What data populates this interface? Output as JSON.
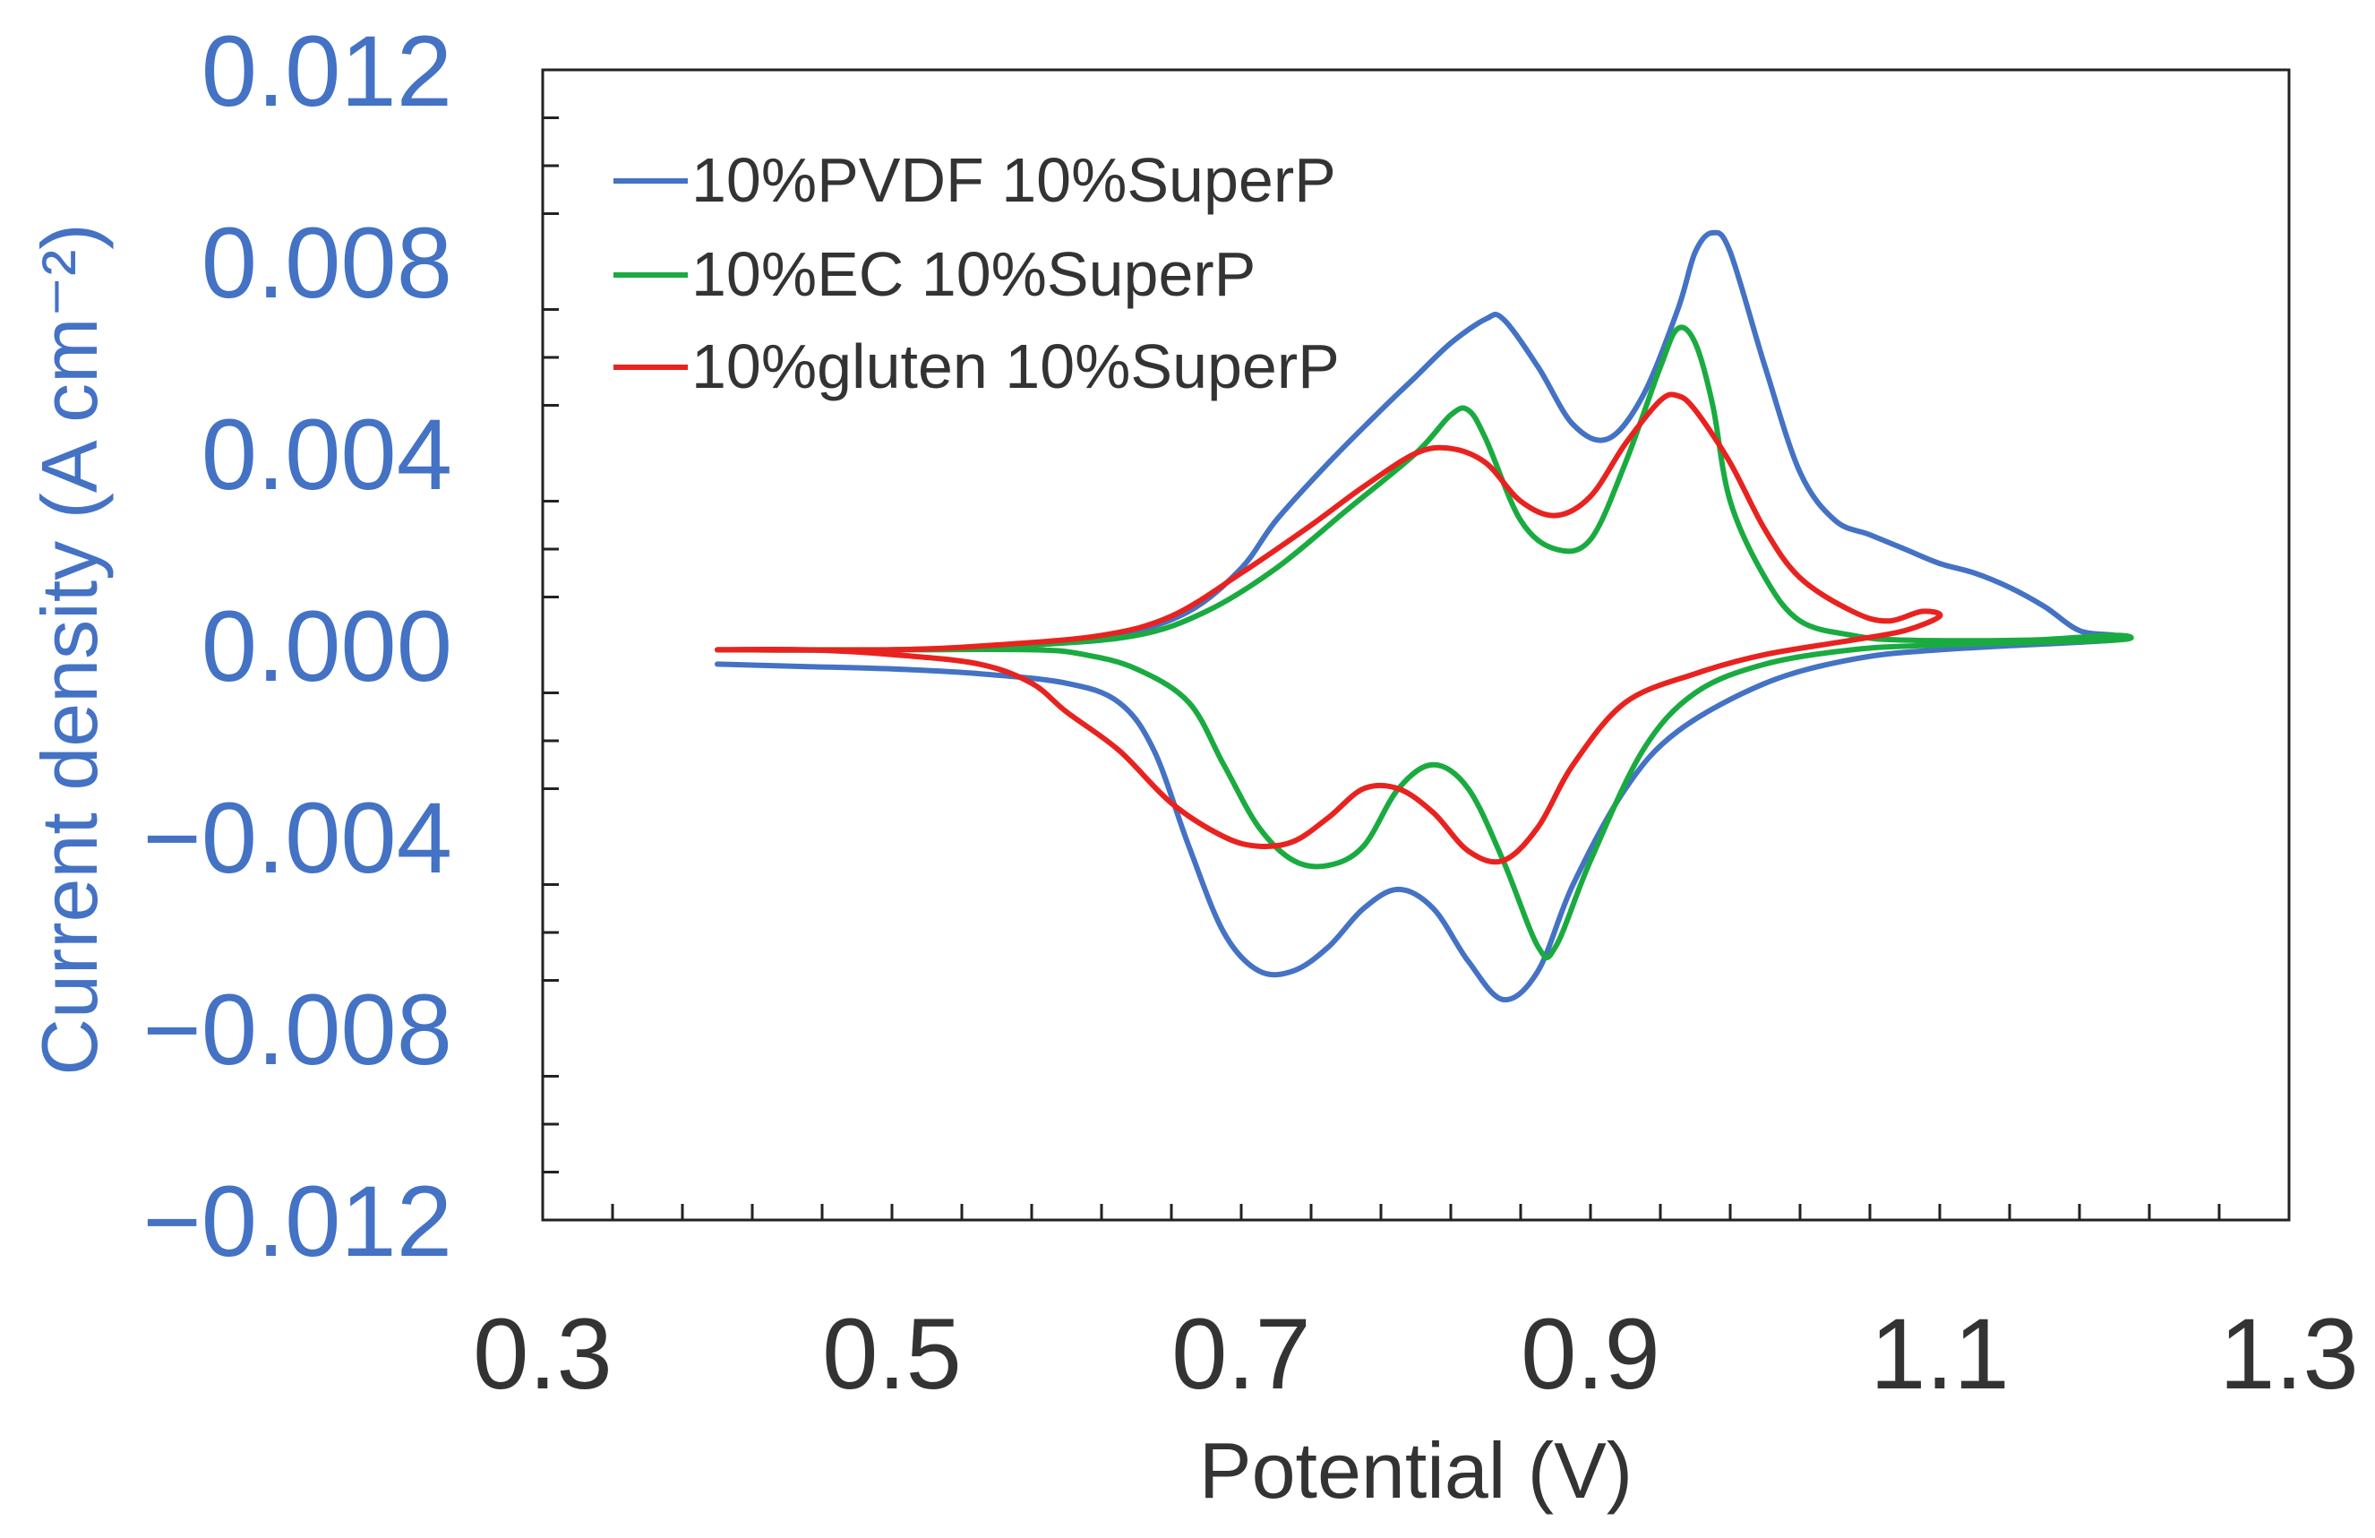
{
  "chart_data": {
    "type": "line",
    "xlabel": "Potential (V)",
    "ylabel": "Current density (A cm⁻²)",
    "xlim": [
      0.3,
      1.3
    ],
    "ylim": [
      -0.012,
      0.012
    ],
    "x_ticks": [
      "0.3",
      "0.5",
      "0.7",
      "0.9",
      "1.1",
      "1.3"
    ],
    "y_ticks": [
      "0.012",
      "0.008",
      "0.004",
      "0.000",
      "−0.004",
      "−0.008",
      "−0.012"
    ],
    "colors": {
      "y_axis_text": "#4472c4",
      "x_axis_text": "#333333",
      "frame": "#222222",
      "legend_text": "#333333"
    },
    "legend_position": "top-left",
    "grid": false,
    "series": [
      {
        "name": "10%PVDF 10%SuperP",
        "color": "#4472c4",
        "points": [
          [
            0.4,
            -0.0004
          ],
          [
            0.45,
            -0.00045
          ],
          [
            0.5,
            -0.0005
          ],
          [
            0.55,
            -0.0006
          ],
          [
            0.6,
            -0.0008
          ],
          [
            0.63,
            -0.0012
          ],
          [
            0.65,
            -0.0022
          ],
          [
            0.67,
            -0.0042
          ],
          [
            0.69,
            -0.006
          ],
          [
            0.71,
            -0.0068
          ],
          [
            0.73,
            -0.0068
          ],
          [
            0.75,
            -0.0063
          ],
          [
            0.77,
            -0.0055
          ],
          [
            0.79,
            -0.0051
          ],
          [
            0.81,
            -0.0055
          ],
          [
            0.83,
            -0.0066
          ],
          [
            0.85,
            -0.0074
          ],
          [
            0.87,
            -0.0068
          ],
          [
            0.89,
            -0.005
          ],
          [
            0.92,
            -0.003
          ],
          [
            0.95,
            -0.0018
          ],
          [
            1.0,
            -0.0008
          ],
          [
            1.05,
            -0.0003
          ],
          [
            1.1,
            -0.0001
          ],
          [
            1.2,
            0.0001
          ],
          [
            1.2,
            0.0002
          ],
          [
            1.18,
            0.0003
          ],
          [
            1.16,
            0.0008
          ],
          [
            1.14,
            0.0012
          ],
          [
            1.12,
            0.0015
          ],
          [
            1.1,
            0.0017
          ],
          [
            1.08,
            0.002
          ],
          [
            1.06,
            0.0023
          ],
          [
            1.04,
            0.0026
          ],
          [
            1.02,
            0.0036
          ],
          [
            1.0,
            0.0058
          ],
          [
            0.98,
            0.0082
          ],
          [
            0.97,
            0.0086
          ],
          [
            0.96,
            0.0082
          ],
          [
            0.95,
            0.007
          ],
          [
            0.93,
            0.0052
          ],
          [
            0.91,
            0.0043
          ],
          [
            0.89,
            0.0046
          ],
          [
            0.87,
            0.0058
          ],
          [
            0.85,
            0.0068
          ],
          [
            0.84,
            0.0068
          ],
          [
            0.82,
            0.0063
          ],
          [
            0.8,
            0.0056
          ],
          [
            0.78,
            0.0049
          ],
          [
            0.75,
            0.0038
          ],
          [
            0.72,
            0.0026
          ],
          [
            0.7,
            0.0016
          ],
          [
            0.67,
            0.0007
          ],
          [
            0.63,
            0.0002
          ],
          [
            0.58,
            0.0
          ],
          [
            0.5,
            -0.0001
          ],
          [
            0.4,
            -0.0001
          ]
        ]
      },
      {
        "name": "10%EC 10%SuperP",
        "color": "#1aab40",
        "points": [
          [
            0.4,
            -0.0001
          ],
          [
            0.5,
            -0.0001
          ],
          [
            0.58,
            -0.0001
          ],
          [
            0.61,
            -0.0002
          ],
          [
            0.64,
            -0.0005
          ],
          [
            0.67,
            -0.0012
          ],
          [
            0.69,
            -0.0025
          ],
          [
            0.71,
            -0.0038
          ],
          [
            0.73,
            -0.0045
          ],
          [
            0.75,
            -0.0046
          ],
          [
            0.77,
            -0.0042
          ],
          [
            0.79,
            -0.003
          ],
          [
            0.81,
            -0.0025
          ],
          [
            0.83,
            -0.003
          ],
          [
            0.85,
            -0.0045
          ],
          [
            0.87,
            -0.0063
          ],
          [
            0.88,
            -0.0063
          ],
          [
            0.9,
            -0.0045
          ],
          [
            0.93,
            -0.0022
          ],
          [
            0.96,
            -0.001
          ],
          [
            1.0,
            -0.0004
          ],
          [
            1.05,
            -0.0001
          ],
          [
            1.1,
            0.0
          ],
          [
            1.2,
            0.0001
          ],
          [
            1.2,
            0.0002
          ],
          [
            1.15,
            0.0001
          ],
          [
            1.08,
            0.0001
          ],
          [
            1.05,
            0.0002
          ],
          [
            1.02,
            0.0005
          ],
          [
            1.0,
            0.0014
          ],
          [
            0.98,
            0.003
          ],
          [
            0.97,
            0.005
          ],
          [
            0.96,
            0.0063
          ],
          [
            0.95,
            0.0066
          ],
          [
            0.94,
            0.0058
          ],
          [
            0.92,
            0.0038
          ],
          [
            0.9,
            0.0022
          ],
          [
            0.88,
            0.002
          ],
          [
            0.86,
            0.0026
          ],
          [
            0.84,
            0.0043
          ],
          [
            0.83,
            0.0049
          ],
          [
            0.82,
            0.0048
          ],
          [
            0.8,
            0.004
          ],
          [
            0.76,
            0.0028
          ],
          [
            0.72,
            0.0016
          ],
          [
            0.68,
            0.0007
          ],
          [
            0.64,
            0.0002
          ],
          [
            0.58,
            0.0
          ],
          [
            0.5,
            -0.0001
          ],
          [
            0.4,
            -0.0001
          ]
        ]
      },
      {
        "name": "10%gluten 10%SuperP",
        "color": "#e8231f",
        "points": [
          [
            0.4,
            -0.0001
          ],
          [
            0.45,
            -0.0001
          ],
          [
            0.5,
            -0.0002
          ],
          [
            0.55,
            -0.0004
          ],
          [
            0.58,
            -0.0008
          ],
          [
            0.6,
            -0.0014
          ],
          [
            0.63,
            -0.0022
          ],
          [
            0.66,
            -0.0033
          ],
          [
            0.69,
            -0.004
          ],
          [
            0.71,
            -0.0042
          ],
          [
            0.73,
            -0.0041
          ],
          [
            0.75,
            -0.0036
          ],
          [
            0.77,
            -0.003
          ],
          [
            0.79,
            -0.003
          ],
          [
            0.81,
            -0.0035
          ],
          [
            0.83,
            -0.0043
          ],
          [
            0.85,
            -0.0045
          ],
          [
            0.87,
            -0.0038
          ],
          [
            0.89,
            -0.0025
          ],
          [
            0.92,
            -0.0012
          ],
          [
            0.96,
            -0.0006
          ],
          [
            1.0,
            -0.0002
          ],
          [
            1.05,
            0.0001
          ],
          [
            1.08,
            0.0003
          ],
          [
            1.1,
            0.0006
          ],
          [
            1.09,
            0.0007
          ],
          [
            1.07,
            0.0005
          ],
          [
            1.05,
            0.0007
          ],
          [
            1.02,
            0.0014
          ],
          [
            1.0,
            0.0024
          ],
          [
            0.98,
            0.0038
          ],
          [
            0.96,
            0.0049
          ],
          [
            0.95,
            0.0052
          ],
          [
            0.94,
            0.0051
          ],
          [
            0.92,
            0.0042
          ],
          [
            0.9,
            0.0031
          ],
          [
            0.88,
            0.0027
          ],
          [
            0.86,
            0.003
          ],
          [
            0.84,
            0.0038
          ],
          [
            0.82,
            0.0041
          ],
          [
            0.8,
            0.004
          ],
          [
            0.77,
            0.0033
          ],
          [
            0.74,
            0.0025
          ],
          [
            0.7,
            0.0015
          ],
          [
            0.66,
            0.0006
          ],
          [
            0.62,
            0.0002
          ],
          [
            0.56,
            0.0
          ],
          [
            0.5,
            -0.0001
          ],
          [
            0.4,
            -0.0001
          ]
        ]
      }
    ]
  }
}
